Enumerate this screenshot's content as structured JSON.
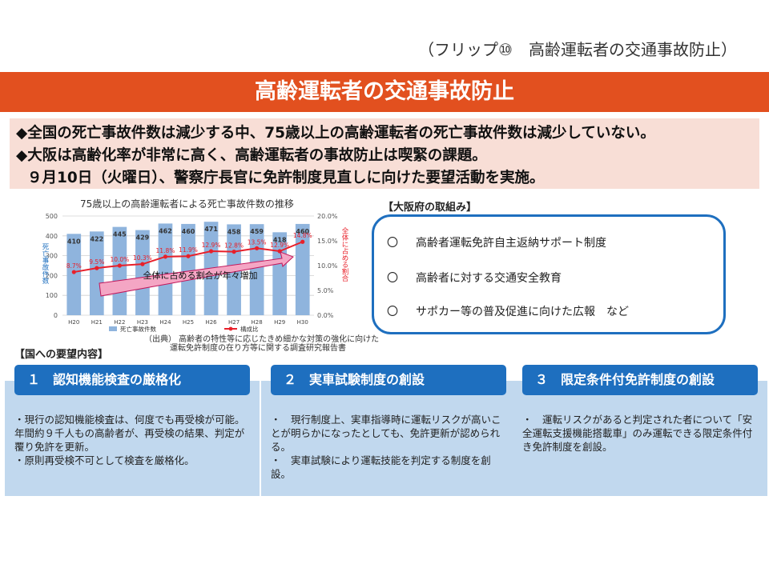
{
  "header": {
    "flip_label": "（フリップ⑩　高齢運転者の交通事故防止）",
    "title": "高齢運転者の交通事故防止"
  },
  "summary": {
    "line1": "◆全国の死亡事故件数は減少する中、75歳以上の高齢運転者の死亡事故件数は減少していない。",
    "line2": "◆大阪は高齢化率が非常に高く、高齢運転者の事故防止は喫緊の課題。",
    "line3": "９月10日（火曜日）、警察庁長官に免許制度見直しに向けた要望活動を実施。"
  },
  "chart_data": {
    "type": "bar",
    "title": "75歳以上の高齢運転者による死亡事故件数の推移",
    "categories": [
      "H20",
      "H21",
      "H22",
      "H23",
      "H24",
      "H25",
      "H26",
      "H27",
      "H28",
      "H29",
      "H30"
    ],
    "series": [
      {
        "name": "死亡事故件数",
        "type": "bar",
        "axis": "left",
        "values": [
          410,
          422,
          445,
          429,
          462,
          460,
          471,
          458,
          459,
          418,
          460
        ]
      },
      {
        "name": "構成比",
        "type": "line",
        "axis": "right",
        "values": [
          8.7,
          9.5,
          10.0,
          10.3,
          11.8,
          11.9,
          12.9,
          12.8,
          13.5,
          12.9,
          14.8
        ]
      }
    ],
    "data_labels": [
      "8.7%",
      "9.5%",
      "10.0%",
      "10.3%",
      "11.8%",
      "11.9%",
      "12.9%",
      "12.8%",
      "13.5%",
      "12.9%",
      "14.8%"
    ],
    "ylabel": "死亡事故件数",
    "y2label": "全体に占める割合",
    "ylim": [
      0,
      500
    ],
    "yticks": [
      "0",
      "100",
      "200",
      "300",
      "400",
      "500"
    ],
    "y2lim": [
      0,
      20
    ],
    "y2ticks": [
      "0.0%",
      "5.0%",
      "10.0%",
      "15.0%",
      "20.0%"
    ],
    "annotation": "全体に占める割合が年々増加",
    "legend": "bottom",
    "grid": true,
    "bar_color": "#8fb4dd",
    "line_color": "#e8202a"
  },
  "source": {
    "line1": "（出典） 高齢者の特性等に応じたきめ細かな対策の強化に向けた",
    "line2": "運転免許制度の在り方等に関する調査研究報告書"
  },
  "osaka": {
    "title": "【大阪府の取組み】",
    "items": [
      {
        "mark": "〇",
        "text": "高齢者運転免許自主返納サポート制度"
      },
      {
        "mark": "〇",
        "text": "高齢者に対する交通安全教育"
      },
      {
        "mark": "〇",
        "text": "サポカー等の普及促進に向けた広報　など"
      }
    ]
  },
  "requests": {
    "title": "【国への要望内容】",
    "cols": [
      {
        "heading": "１　認知機能検査の厳格化",
        "para1": "・現行の認知機能検査は、何度でも再受検が可能。年間約９千人もの高齢者が、再受検の結果、判定が覆り免許を更新。",
        "para2": "・原則再受検不可として検査を厳格化。"
      },
      {
        "heading": "２　実車試験制度の創設",
        "para1": "・　現行制度上、実車指導時に運転リスクが高いことが明らかになったとしても、免許更新が認められる。",
        "para2": "・　実車試験により運転技能を判定する制度を創設。"
      },
      {
        "heading": "３　限定条件付免許制度の創設",
        "para1": "・　運転リスクがあると判定された者について「安全運転支援機能搭載車」のみ運転できる限定条件付き免許制度を創設。",
        "para2": ""
      }
    ]
  }
}
